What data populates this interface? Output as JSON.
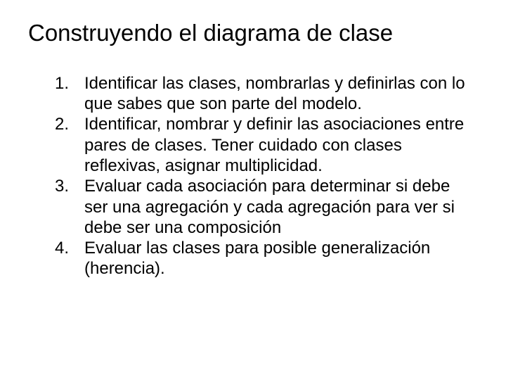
{
  "slide": {
    "title": "Construyendo el diagrama de clase",
    "title_fontsize": 33,
    "title_fontweight": 400,
    "body_fontsize": 24,
    "text_color": "#000000",
    "background_color": "#ffffff",
    "font_family": "Arial",
    "list_type": "ordered",
    "items": [
      "Identificar las clases, nombrarlas y definirlas con lo que sabes que son parte del modelo.",
      "Identificar, nombrar y definir las asociaciones entre pares de clases.  Tener cuidado con clases reflexivas, asignar multiplicidad.",
      "Evaluar cada asociación para determinar si debe ser una agregación y cada agregación para ver si debe ser una composición",
      "Evaluar las clases para posible generalización (herencia)."
    ]
  }
}
